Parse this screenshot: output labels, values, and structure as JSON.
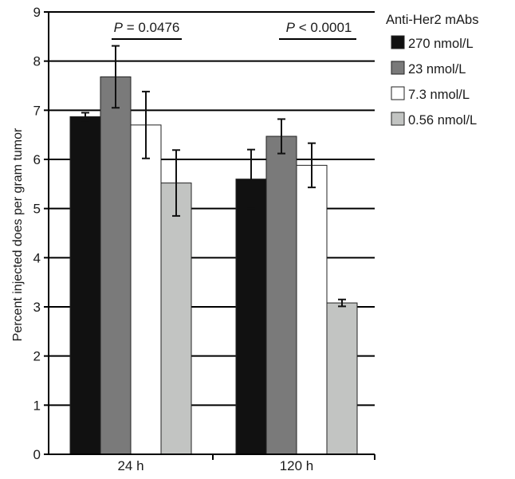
{
  "chart_data": {
    "type": "bar",
    "title": "",
    "xlabel": "",
    "ylabel": "Percent injected does per gram tumor",
    "ylim": [
      0,
      9
    ],
    "yticks": [
      "0",
      "1",
      "2",
      "3",
      "4",
      "5",
      "6",
      "7",
      "8",
      "9"
    ],
    "grid": "horizontal",
    "categories": [
      "24 h",
      "120 h"
    ],
    "legend": {
      "title": "Anti-Her2 mAbs",
      "placement": "top-right, outside plot"
    },
    "series": [
      {
        "name": "270 nmol/L",
        "color": "#111111",
        "values": [
          6.87,
          5.6
        ],
        "errors": [
          0.08,
          0.6
        ]
      },
      {
        "name": "23 nmol/L",
        "color": "#7a7a7a",
        "values": [
          7.68,
          6.47
        ],
        "errors": [
          0.63,
          0.35
        ]
      },
      {
        "name": "7.3 nmol/L",
        "color": "#ffffff",
        "values": [
          6.7,
          5.88
        ],
        "errors": [
          0.68,
          0.45
        ]
      },
      {
        "name": "0.56 nmol/L",
        "color": "#c2c4c2",
        "values": [
          5.52,
          3.08
        ],
        "errors": [
          0.67,
          0.07
        ]
      }
    ],
    "annotations": [
      {
        "italic": "P",
        "rest": " = 0.0476",
        "category": "24 h"
      },
      {
        "italic": "P",
        "rest": " < 0.0001",
        "category": "120 h"
      }
    ]
  }
}
